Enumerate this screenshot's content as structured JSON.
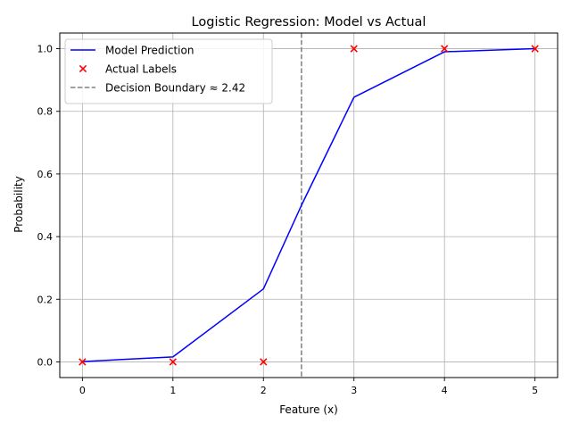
{
  "chart_data": {
    "type": "line",
    "title": "Logistic Regression: Model vs Actual",
    "xlabel": "Feature (x)",
    "ylabel": "Probability",
    "xlim": [
      -0.25,
      5.25
    ],
    "ylim": [
      -0.05,
      1.05
    ],
    "xticks": [
      0,
      1,
      2,
      3,
      4,
      5
    ],
    "xtick_labels": [
      "0",
      "1",
      "2",
      "3",
      "4",
      "5"
    ],
    "yticks": [
      0.0,
      0.2,
      0.4,
      0.6,
      0.8,
      1.0
    ],
    "ytick_labels": [
      "0.0",
      "0.2",
      "0.4",
      "0.6",
      "0.8",
      "1.0"
    ],
    "grid": true,
    "legend_position": "top-left",
    "series": [
      {
        "name": "Model Prediction",
        "kind": "line",
        "color": "#0000ff",
        "x": [
          0,
          1,
          2,
          2.42,
          3,
          4,
          5
        ],
        "y": [
          0.001,
          0.016,
          0.233,
          0.5,
          0.845,
          0.99,
          1.0
        ]
      },
      {
        "name": "Actual Labels",
        "kind": "scatter",
        "marker": "x",
        "color": "#ff0000",
        "x": [
          0,
          1,
          2,
          3,
          4,
          5
        ],
        "y": [
          0,
          0,
          0,
          1,
          1,
          1
        ]
      }
    ],
    "vlines": [
      {
        "name": "Decision Boundary ≈ 2.42",
        "x": 2.42,
        "color": "#808080",
        "dash": "dashed"
      }
    ]
  }
}
